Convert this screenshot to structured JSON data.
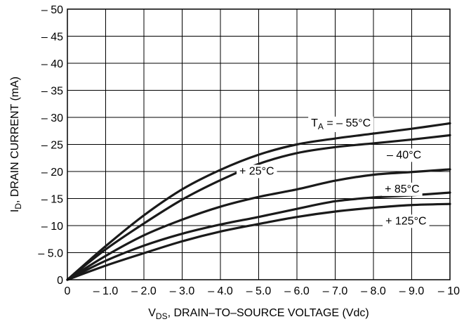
{
  "chart_data": {
    "type": "line",
    "title": "",
    "xlabel": "V_DS, DRAIN–TO–SOURCE VOLTAGE (Vdc)",
    "ylabel": "I_D, DRAIN CURRENT (mA)",
    "xlabel_parts": {
      "main": "V",
      "sub": "DS",
      "rest": ", DRAIN–TO–SOURCE VOLTAGE (Vdc)"
    },
    "ylabel_parts": {
      "main": "I",
      "sub": "D",
      "rest": ", DRAIN CURRENT (mA)"
    },
    "xlim": [
      0,
      -10
    ],
    "ylim": [
      0,
      -50
    ],
    "grid": true,
    "x_ticks": [
      0,
      -1,
      -2,
      -3,
      -4,
      -5,
      -6,
      -7,
      -8,
      -9,
      -10
    ],
    "x_tick_labels": [
      "0",
      "– 1.0",
      "– 2.0",
      "– 3.0",
      "– 4.0",
      "– 5.0",
      "– 6.0",
      "– 7.0",
      "– 8.0",
      "– 9.0",
      "– 10"
    ],
    "y_ticks": [
      0,
      -5,
      -10,
      -15,
      -20,
      -25,
      -30,
      -35,
      -40,
      -45,
      -50
    ],
    "y_tick_labels": [
      "0",
      "– 5.0",
      "– 10",
      "– 15",
      "– 20",
      "– 25",
      "– 30",
      "– 35",
      "– 40",
      "– 45",
      "– 50"
    ],
    "series": [
      {
        "name": "T_A = – 55°C",
        "label_parts": {
          "main": "T",
          "sub": "A",
          "rest": " = – 55°C"
        },
        "label_at": [
          -7.15,
          -29.1
        ],
        "x": [
          0,
          -1,
          -2,
          -3,
          -4,
          -5,
          -6,
          -7,
          -8,
          -9,
          -10
        ],
        "y": [
          0,
          -6.2,
          -11.9,
          -16.7,
          -20.3,
          -23.1,
          -25.0,
          -26.1,
          -27.0,
          -27.9,
          -28.9
        ]
      },
      {
        "name": "– 40°C",
        "label_parts": {
          "main": "– 40°C",
          "sub": "",
          "rest": ""
        },
        "label_at": [
          -8.8,
          -23.2
        ],
        "x": [
          0,
          -1,
          -2,
          -3,
          -4,
          -5,
          -6,
          -7,
          -8,
          -9,
          -10
        ],
        "y": [
          0,
          -5.6,
          -10.4,
          -14.8,
          -18.4,
          -21.4,
          -23.4,
          -24.5,
          -25.2,
          -25.9,
          -26.7
        ]
      },
      {
        "name": "+ 25°C",
        "label_parts": {
          "main": "+ 25°C",
          "sub": "",
          "rest": ""
        },
        "label_at": [
          -4.95,
          -20.2
        ],
        "x": [
          0,
          -1,
          -2,
          -3,
          -4,
          -5,
          -6,
          -7,
          -8,
          -9,
          -10
        ],
        "y": [
          0,
          -4.4,
          -8.2,
          -11.1,
          -13.5,
          -15.3,
          -16.7,
          -18.3,
          -19.4,
          -19.9,
          -20.4
        ]
      },
      {
        "name": "+ 85°C",
        "label_parts": {
          "main": "+ 85°C",
          "sub": "",
          "rest": ""
        },
        "label_at": [
          -8.75,
          -16.9
        ],
        "x": [
          0,
          -1,
          -2,
          -3,
          -4,
          -5,
          -6,
          -7,
          -8,
          -9,
          -10
        ],
        "y": [
          0,
          -3.5,
          -6.3,
          -8.5,
          -10.2,
          -11.6,
          -13.1,
          -14.5,
          -15.2,
          -15.6,
          -16.1
        ]
      },
      {
        "name": "+ 125°C",
        "label_parts": {
          "main": "+ 125°C",
          "sub": "",
          "rest": ""
        },
        "label_at": [
          -8.85,
          -11.0
        ],
        "x": [
          0,
          -1,
          -2,
          -3,
          -4,
          -5,
          -6,
          -7,
          -8,
          -9,
          -10
        ],
        "y": [
          0,
          -2.6,
          -4.9,
          -7.1,
          -8.9,
          -10.3,
          -11.6,
          -12.6,
          -13.3,
          -13.8,
          -14.0
        ]
      }
    ]
  }
}
